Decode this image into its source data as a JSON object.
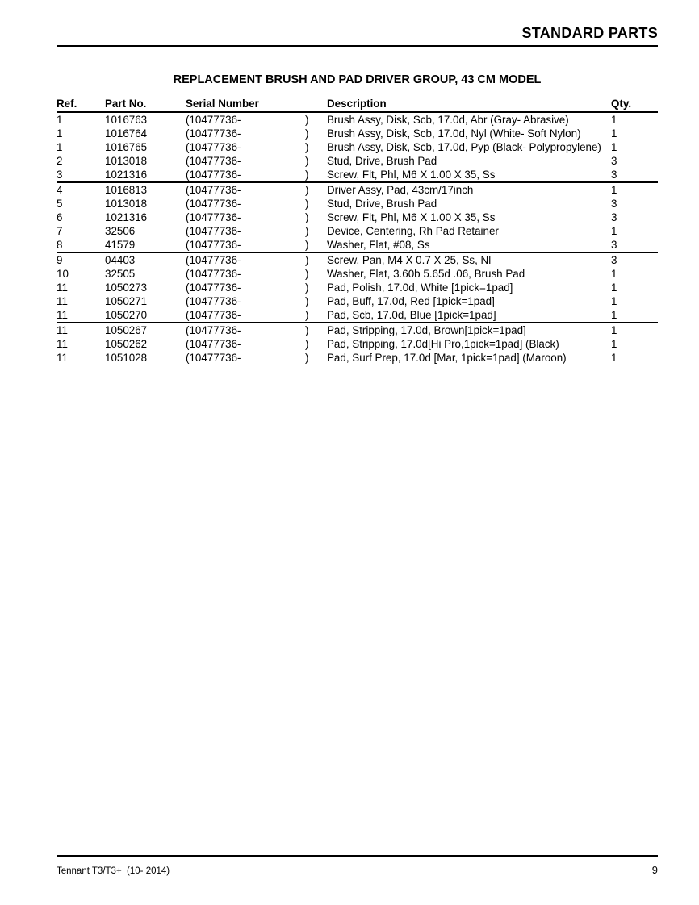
{
  "colors": {
    "ink": "#000000",
    "background": "#ffffff"
  },
  "page": {
    "header_title": "STANDARD PARTS",
    "footer": {
      "left": "Tennant T3/T3+  (10- 2014)",
      "page_number": "9"
    }
  },
  "parts_table": {
    "title": "REPLACEMENT BRUSH AND PAD DRIVER GROUP, 43 CM MODEL",
    "columns": {
      "ref": "Ref.",
      "part": "Part No.",
      "serial": "Serial Number",
      "description": "Description",
      "qty": "Qty."
    },
    "groups": [
      {
        "rows": [
          {
            "ref": "1",
            "part": "1016763",
            "serial": "(10477736-",
            "serial_close": ")",
            "description": "Brush Assy, Disk, Scb, 17.0d, Abr (Gray- Abrasive)",
            "qty": "1"
          },
          {
            "ref": "1",
            "part": "1016764",
            "serial": "(10477736-",
            "serial_close": ")",
            "description": "Brush Assy, Disk, Scb, 17.0d, Nyl (White- Soft Nylon)",
            "qty": "1"
          },
          {
            "ref": "1",
            "part": "1016765",
            "serial": "(10477736-",
            "serial_close": ")",
            "description": "Brush Assy, Disk, Scb, 17.0d, Pyp (Black- Polypropylene)",
            "qty": "1"
          },
          {
            "ref": "2",
            "part": "1013018",
            "serial": "(10477736-",
            "serial_close": ")",
            "description": "Stud, Drive, Brush Pad",
            "qty": "3"
          },
          {
            "ref": "3",
            "part": "1021316",
            "serial": "(10477736-",
            "serial_close": ")",
            "description": "Screw, Flt, Phl, M6 X 1.00 X 35, Ss",
            "qty": "3"
          }
        ]
      },
      {
        "rows": [
          {
            "ref": "4",
            "part": "1016813",
            "serial": "(10477736-",
            "serial_close": ")",
            "description": "Driver Assy, Pad, 43cm/17inch",
            "qty": "1"
          },
          {
            "ref": "5",
            "part": "1013018",
            "serial": "(10477736-",
            "serial_close": ")",
            "description": "Stud, Drive, Brush Pad",
            "qty": "3"
          },
          {
            "ref": "6",
            "part": "1021316",
            "serial": "(10477736-",
            "serial_close": ")",
            "description": "Screw, Flt, Phl, M6 X 1.00 X 35, Ss",
            "qty": "3"
          },
          {
            "ref": "7",
            "part": "32506",
            "serial": "(10477736-",
            "serial_close": ")",
            "description": "Device, Centering, Rh Pad Retainer",
            "qty": "1"
          },
          {
            "ref": "8",
            "part": "41579",
            "serial": "(10477736-",
            "serial_close": ")",
            "description": "Washer, Flat, #08, Ss",
            "qty": "3"
          }
        ]
      },
      {
        "rows": [
          {
            "ref": "9",
            "part": "04403",
            "serial": "(10477736-",
            "serial_close": ")",
            "description": "Screw, Pan, M4 X 0.7 X 25, Ss, Nl",
            "qty": "3"
          },
          {
            "ref": "10",
            "part": "32505",
            "serial": "(10477736-",
            "serial_close": ")",
            "description": "Washer, Flat, 3.60b 5.65d .06, Brush Pad",
            "qty": "1"
          },
          {
            "ref": "11",
            "part": "1050273",
            "serial": "(10477736-",
            "serial_close": ")",
            "description": "Pad, Polish, 17.0d, White [1pick=1pad]",
            "qty": "1"
          },
          {
            "ref": "11",
            "part": "1050271",
            "serial": "(10477736-",
            "serial_close": ")",
            "description": "Pad, Buff, 17.0d, Red [1pick=1pad]",
            "qty": "1"
          },
          {
            "ref": "11",
            "part": "1050270",
            "serial": "(10477736-",
            "serial_close": ")",
            "description": "Pad, Scb, 17.0d, Blue [1pick=1pad]",
            "qty": "1"
          }
        ]
      },
      {
        "rows": [
          {
            "ref": "11",
            "part": "1050267",
            "serial": "(10477736-",
            "serial_close": ")",
            "description": "Pad, Stripping, 17.0d, Brown[1pick=1pad]",
            "qty": "1"
          },
          {
            "ref": "11",
            "part": "1050262",
            "serial": "(10477736-",
            "serial_close": ")",
            "description": "Pad, Stripping, 17.0d[Hi Pro,1pick=1pad] (Black)",
            "qty": "1"
          },
          {
            "ref": "11",
            "part": "1051028",
            "serial": "(10477736-",
            "serial_close": ")",
            "description": "Pad, Surf Prep, 17.0d [Mar, 1pick=1pad] (Maroon)",
            "qty": "1"
          }
        ]
      }
    ]
  }
}
